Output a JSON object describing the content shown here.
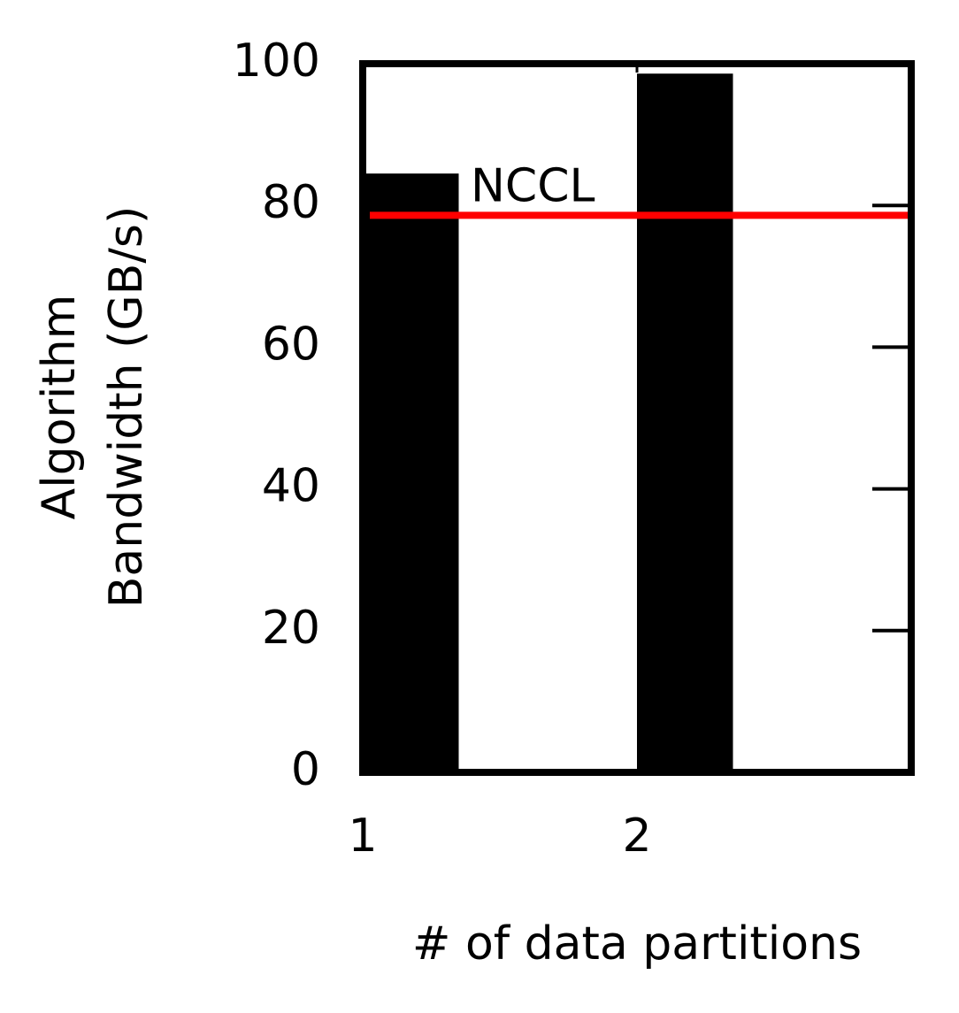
{
  "chart_data": {
    "type": "bar",
    "x": [
      1,
      2
    ],
    "values": [
      84.5,
      98.6
    ],
    "color": "#000000",
    "xlim": [
      1,
      3
    ],
    "xticks": [
      1,
      2
    ],
    "ylim": [
      0,
      100
    ],
    "yticks": [
      0,
      20,
      40,
      60,
      80,
      100
    ],
    "xlabel": "# of data partitions",
    "ylabel": [
      "Algorithm",
      "Bandwidth (GB/s)"
    ],
    "reference_line": {
      "label": "NCCL",
      "value": 78.6,
      "color": "#ff0000"
    }
  }
}
